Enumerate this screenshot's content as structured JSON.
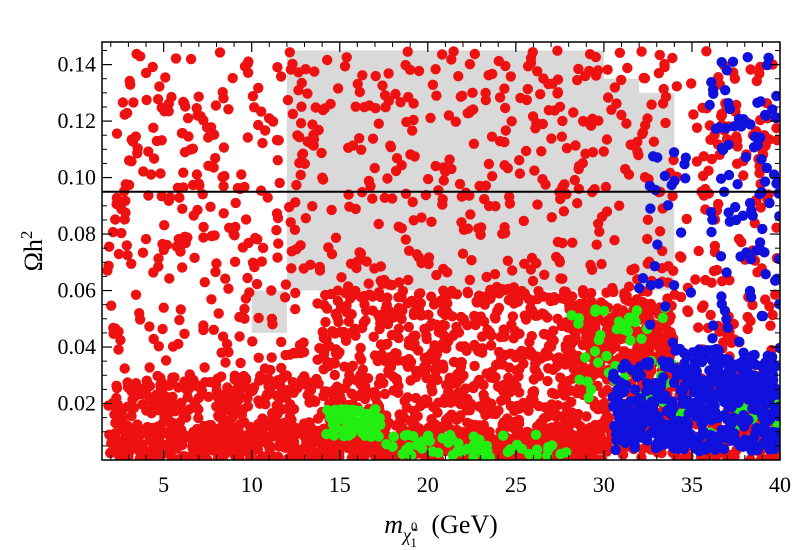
{
  "chart_data": {
    "type": "scatter",
    "title": "",
    "xlabel": {
      "main": "m",
      "subscript": "χ̃",
      "sub_sup": "0",
      "sub_sub": "1",
      "units": "(GeV)"
    },
    "ylabel": {
      "main": "Ωh",
      "sup": "2"
    },
    "xlim": [
      1.5,
      40
    ],
    "ylim": [
      0.0,
      0.148
    ],
    "xticks": [
      5,
      10,
      15,
      20,
      25,
      30,
      35,
      40
    ],
    "yticks": [
      0.02,
      0.04,
      0.06,
      0.08,
      0.1,
      0.12,
      0.14
    ],
    "ytick_labels": [
      "0.02",
      "0.04",
      "0.06",
      "0.08",
      "0.10",
      "0.12",
      "0.14"
    ],
    "hline": {
      "y": 0.095,
      "color": "#000000"
    },
    "excluded_region": {
      "color": "#d9d9d9",
      "polygon": [
        [
          10,
          0.045
        ],
        [
          12,
          0.045
        ],
        [
          12,
          0.145
        ],
        [
          30,
          0.145
        ],
        [
          30,
          0.135
        ],
        [
          32,
          0.135
        ],
        [
          32,
          0.13
        ],
        [
          34,
          0.13
        ],
        [
          34,
          0.06
        ],
        [
          10,
          0.06
        ]
      ]
    },
    "series": [
      {
        "name": "red",
        "color": "#ee1111",
        "bands": [
          {
            "x": [
              1.8,
              40
            ],
            "y": [
              0.0,
              0.145
            ],
            "n": 1150
          },
          {
            "x": [
              2,
              40
            ],
            "y": [
              0.0,
              0.03
            ],
            "n": 900
          },
          {
            "x": [
              2,
              30
            ],
            "y": [
              0.0,
              0.012
            ],
            "n": 500
          },
          {
            "x": [
              14,
              34
            ],
            "y": [
              0.03,
              0.06
            ],
            "n": 350
          },
          {
            "x": [
              28,
              34
            ],
            "y": [
              0.03,
              0.055
            ],
            "n": 150
          }
        ]
      },
      {
        "name": "green",
        "color": "#22ee11",
        "bands": [
          {
            "x": [
              14.2,
              17.5
            ],
            "y": [
              0.008,
              0.018
            ],
            "n": 60
          },
          {
            "x": [
              17.5,
              28
            ],
            "y": [
              0.001,
              0.009
            ],
            "n": 55
          },
          {
            "x": [
              28,
              34
            ],
            "y": [
              0.02,
              0.055
            ],
            "n": 45
          },
          {
            "x": [
              34,
              40
            ],
            "y": [
              0.005,
              0.025
            ],
            "n": 20
          }
        ]
      },
      {
        "name": "blue",
        "color": "#1111dd",
        "bands": [
          {
            "x": [
              30.5,
              40
            ],
            "y": [
              0.003,
              0.035
            ],
            "n": 400
          },
          {
            "x": [
              34,
              40
            ],
            "y": [
              0.02,
              0.04
            ],
            "n": 100
          },
          {
            "x": [
              36,
              40
            ],
            "y": [
              0.04,
              0.144
            ],
            "n": 90
          },
          {
            "x": [
              32,
              35
            ],
            "y": [
              0.04,
              0.11
            ],
            "n": 25
          }
        ]
      }
    ]
  }
}
